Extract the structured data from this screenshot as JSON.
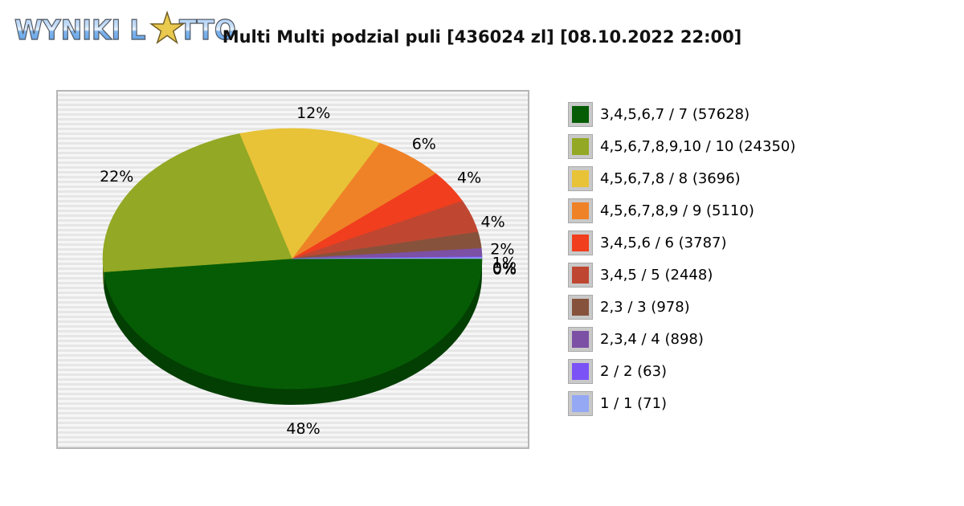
{
  "logo": {
    "part1": "WYNIKI L",
    "star": "★",
    "part2": "TTO"
  },
  "chart_data": {
    "type": "pie",
    "title": "Multi Multi podzial puli [436024 zl] [08.10.2022 22:00]",
    "legend_position": "right",
    "style": "3d-pie",
    "slices": [
      {
        "label": "3,4,5,6,7 / 7",
        "winners": 57628,
        "percent": 48,
        "color": "#055c05"
      },
      {
        "label": "4,5,6,7,8,9,10 / 10",
        "winners": 24350,
        "percent": 22,
        "color": "#93a824"
      },
      {
        "label": "4,5,6,7,8 / 8",
        "winners": 3696,
        "percent": 12,
        "color": "#e8c338"
      },
      {
        "label": "4,5,6,7,8,9 / 9",
        "winners": 5110,
        "percent": 6,
        "color": "#ef8227"
      },
      {
        "label": "3,4,5,6 / 6",
        "winners": 3787,
        "percent": 4,
        "color": "#f03e1e"
      },
      {
        "label": "3,4,5 / 5",
        "winners": 2448,
        "percent": 4,
        "color": "#bf4732"
      },
      {
        "label": "2,3 / 3",
        "winners": 978,
        "percent": 2,
        "color": "#86523c"
      },
      {
        "label": "2,3,4 / 4",
        "winners": 898,
        "percent": 1,
        "color": "#7c50a4"
      },
      {
        "label": "2 / 2",
        "winners": 63,
        "percent": 0,
        "color": "#7b52f6"
      },
      {
        "label": "1 / 1",
        "winners": 71,
        "percent": 0,
        "color": "#95a8f3"
      }
    ]
  }
}
